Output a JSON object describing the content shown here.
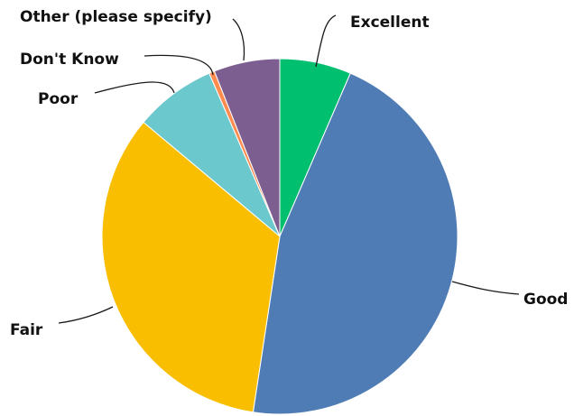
{
  "chart_data": {
    "type": "pie",
    "start_angle_deg": 0,
    "direction": "clockwise",
    "legend": "none",
    "slices": [
      {
        "label": "Excellent",
        "value": 6.5,
        "color": "#00bf6f"
      },
      {
        "label": "Good",
        "value": 45.9,
        "color": "#507cb6"
      },
      {
        "label": "Fair",
        "value": 33.7,
        "color": "#f9be00"
      },
      {
        "label": "Poor",
        "value": 7.4,
        "color": "#6bc8cd"
      },
      {
        "label": "Don't Know",
        "value": 0.5,
        "color": "#ff8b4f"
      },
      {
        "label": "Other (please specify)",
        "value": 6.0,
        "color": "#7d5e90"
      }
    ]
  }
}
